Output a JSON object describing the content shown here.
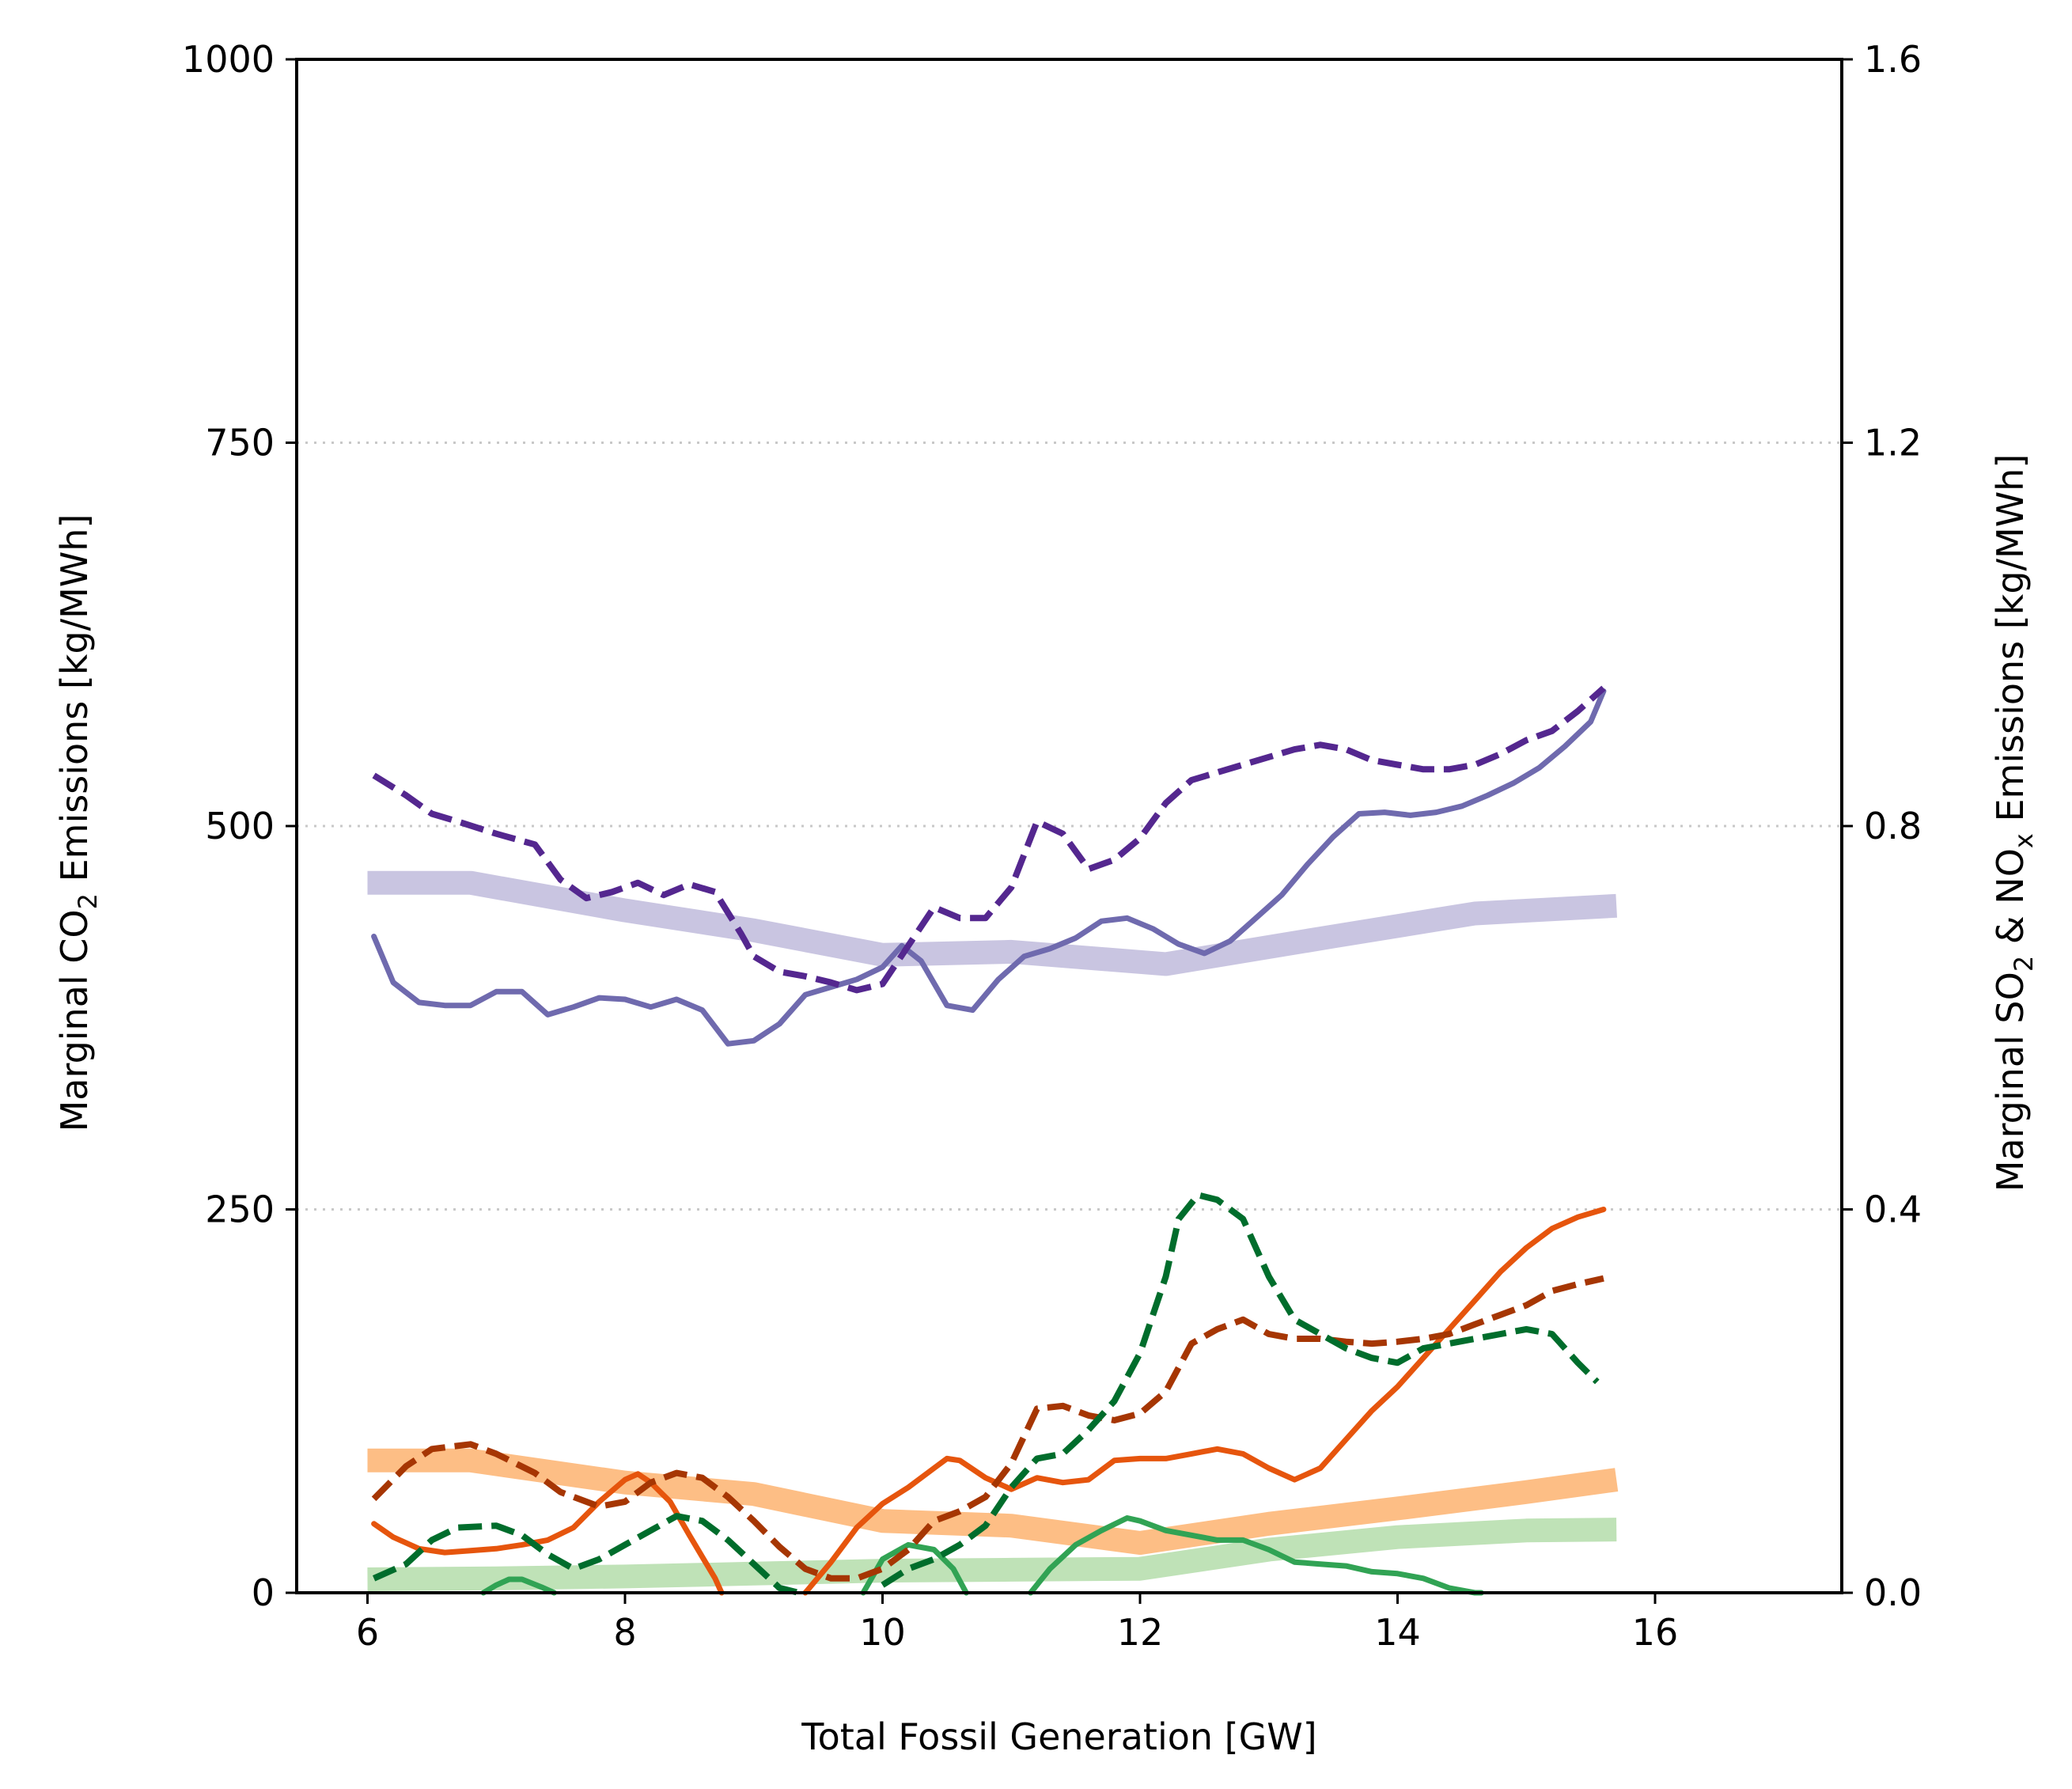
{
  "chart_data": {
    "type": "line",
    "title": "",
    "xlabel": "Total Fossil Generation [GW]",
    "ylabel_left": {
      "pre": "Marginal CO",
      "sub": "2",
      "post": " Emissions [kg/MWh]"
    },
    "ylabel_right": {
      "pre": "Marginal SO",
      "sub1": "2",
      "mid": " & NO",
      "sub2": "x",
      "post": " Emissions [kg/MWh]"
    },
    "xlim": [
      5.45,
      17.45
    ],
    "ylim_left": [
      0,
      1000
    ],
    "ylim_right": [
      0.0,
      1.6
    ],
    "x_ticks": [
      6,
      8,
      10,
      12,
      14,
      16
    ],
    "x_tick_labels": [
      "6",
      "8",
      "10",
      "12",
      "14",
      "16"
    ],
    "y_left_ticks": [
      0,
      250,
      500,
      750,
      1000
    ],
    "y_left_tick_labels": [
      "0",
      "250",
      "500",
      "750",
      "1000"
    ],
    "y_right_ticks": [
      0.0,
      0.4,
      0.8,
      1.2,
      1.6
    ],
    "y_right_tick_labels": [
      "0.0",
      "0.4",
      "0.8",
      "1.2",
      "1.6"
    ],
    "grid": "horizontal dotted at 250, 500, 750",
    "legend": "none",
    "series": [
      {
        "axis": "left",
        "style": "thick",
        "color": "#c9c5e1",
        "x": [
          6.0,
          6.8,
          8.0,
          9.0,
          10.0,
          11.0,
          12.2,
          13.5,
          14.6,
          15.7
        ],
        "y": [
          463,
          463,
          445,
          432,
          416,
          418,
          410,
          428,
          443,
          448
        ]
      },
      {
        "axis": "left",
        "style": "solid",
        "color": "#6f6aae",
        "x": [
          6.05,
          6.2,
          6.4,
          6.6,
          6.8,
          7.0,
          7.2,
          7.4,
          7.6,
          7.8,
          8.0,
          8.2,
          8.4,
          8.6,
          8.8,
          9.0,
          9.2,
          9.4,
          9.6,
          9.8,
          10.0,
          10.15,
          10.3,
          10.5,
          10.7,
          10.9,
          11.1,
          11.3,
          11.5,
          11.7,
          11.9,
          12.1,
          12.3,
          12.5,
          12.7,
          12.9,
          13.1,
          13.3,
          13.5,
          13.7,
          13.9,
          14.1,
          14.3,
          14.5,
          14.7,
          14.9,
          15.1,
          15.3,
          15.5,
          15.6
        ],
        "y": [
          428,
          398,
          385,
          383,
          383,
          392,
          392,
          377,
          382,
          388,
          387,
          382,
          387,
          380,
          358,
          360,
          371,
          390,
          395,
          400,
          408,
          422,
          412,
          383,
          380,
          400,
          415,
          420,
          427,
          438,
          440,
          433,
          423,
          417,
          425,
          440,
          455,
          475,
          493,
          508,
          509,
          507,
          509,
          513,
          520,
          528,
          538,
          552,
          568,
          588
        ]
      },
      {
        "axis": "left",
        "style": "dashed",
        "color": "#54278f",
        "x": [
          6.05,
          6.3,
          6.5,
          6.7,
          7.0,
          7.3,
          7.5,
          7.7,
          7.9,
          8.1,
          8.3,
          8.5,
          8.7,
          8.9,
          9.0,
          9.2,
          9.4,
          9.6,
          9.8,
          10.0,
          10.2,
          10.4,
          10.6,
          10.8,
          11.0,
          11.2,
          11.4,
          11.6,
          11.8,
          12.0,
          12.2,
          12.4,
          12.6,
          12.8,
          13.0,
          13.2,
          13.4,
          13.6,
          13.8,
          14.0,
          14.2,
          14.4,
          14.6,
          14.8,
          15.0,
          15.2,
          15.4,
          15.6
        ],
        "y": [
          533,
          520,
          508,
          503,
          495,
          488,
          465,
          453,
          457,
          463,
          455,
          462,
          457,
          430,
          415,
          405,
          402,
          398,
          393,
          397,
          422,
          447,
          440,
          440,
          460,
          503,
          495,
          472,
          478,
          492,
          515,
          530,
          535,
          540,
          545,
          550,
          553,
          550,
          543,
          540,
          537,
          537,
          540,
          547,
          556,
          562,
          575,
          590
        ]
      },
      {
        "axis": "right",
        "style": "thick",
        "color": "#fdbe85",
        "x": [
          6.0,
          6.8,
          8.0,
          9.0,
          10.0,
          11.0,
          12.0,
          13.0,
          14.0,
          15.0,
          15.7
        ],
        "y": [
          0.138,
          0.138,
          0.115,
          0.103,
          0.075,
          0.07,
          0.052,
          0.072,
          0.088,
          0.105,
          0.118
        ]
      },
      {
        "axis": "right",
        "style": "thick",
        "color": "#bfe2b7",
        "x": [
          6.0,
          7.0,
          8.0,
          9.0,
          10.0,
          11.0,
          12.0,
          13.0,
          14.0,
          15.0,
          15.7
        ],
        "y": [
          0.014,
          0.015,
          0.017,
          0.02,
          0.023,
          0.024,
          0.025,
          0.045,
          0.058,
          0.065,
          0.066
        ]
      },
      {
        "axis": "right",
        "style": "solid",
        "color": "#e6550d",
        "x": [
          6.05,
          6.2,
          6.4,
          6.6,
          6.8,
          7.0,
          7.2,
          7.4,
          7.6,
          7.8,
          8.0,
          8.1,
          8.2,
          8.35,
          8.5,
          8.7,
          8.75
        ],
        "y": [
          0.072,
          0.058,
          0.046,
          0.042,
          0.044,
          0.046,
          0.05,
          0.055,
          0.068,
          0.095,
          0.118,
          0.124,
          0.115,
          0.095,
          0.06,
          0.015,
          0.0
        ]
      },
      {
        "axis": "right",
        "style": "solid",
        "color": "#e6550d",
        "x": [
          9.4,
          9.6,
          9.8,
          10.0,
          10.2,
          10.4,
          10.5,
          10.6,
          10.8,
          11.0,
          11.2,
          11.4,
          11.6,
          11.8,
          12.0,
          12.2,
          12.4,
          12.6,
          12.8,
          13.0,
          13.2,
          13.4,
          13.6,
          13.8,
          14.0,
          14.2,
          14.4,
          14.6,
          14.8,
          15.0,
          15.2,
          15.4,
          15.6
        ],
        "y": [
          0.0,
          0.032,
          0.068,
          0.093,
          0.11,
          0.13,
          0.14,
          0.138,
          0.12,
          0.108,
          0.12,
          0.115,
          0.118,
          0.138,
          0.14,
          0.14,
          0.145,
          0.15,
          0.145,
          0.13,
          0.118,
          0.13,
          0.16,
          0.19,
          0.215,
          0.245,
          0.275,
          0.305,
          0.335,
          0.36,
          0.38,
          0.392,
          0.4
        ]
      },
      {
        "axis": "right",
        "style": "dashed",
        "color": "#a63603",
        "x": [
          6.05,
          6.3,
          6.5,
          6.8,
          7.0,
          7.3,
          7.5,
          7.8,
          8.0,
          8.2,
          8.4,
          8.6,
          8.8,
          9.0,
          9.2,
          9.4,
          9.6,
          9.8,
          10.0,
          10.2,
          10.4,
          10.6,
          10.8,
          11.0,
          11.2,
          11.4,
          11.6,
          11.8,
          12.0,
          12.2,
          12.4,
          12.6,
          12.8,
          13.0,
          13.2,
          13.4,
          13.6,
          13.8,
          14.0,
          14.2,
          14.4,
          14.6,
          14.8,
          15.0,
          15.2,
          15.4,
          15.6
        ],
        "y": [
          0.098,
          0.132,
          0.15,
          0.155,
          0.145,
          0.125,
          0.105,
          0.09,
          0.095,
          0.115,
          0.125,
          0.12,
          0.1,
          0.075,
          0.048,
          0.025,
          0.015,
          0.015,
          0.025,
          0.045,
          0.075,
          0.085,
          0.1,
          0.135,
          0.192,
          0.195,
          0.185,
          0.18,
          0.187,
          0.21,
          0.26,
          0.275,
          0.285,
          0.27,
          0.265,
          0.265,
          0.262,
          0.26,
          0.262,
          0.265,
          0.27,
          0.28,
          0.29,
          0.3,
          0.315,
          0.322,
          0.328
        ]
      },
      {
        "axis": "right",
        "style": "solid",
        "color": "#31a354",
        "x": [
          6.9,
          7.0,
          7.1,
          7.2,
          7.35,
          7.45
        ],
        "y": [
          0.0,
          0.008,
          0.014,
          0.014,
          0.006,
          0.0
        ]
      },
      {
        "axis": "right",
        "style": "solid",
        "color": "#31a354",
        "x": [
          9.85,
          10.0,
          10.2,
          10.4,
          10.55,
          10.65
        ],
        "y": [
          0.0,
          0.035,
          0.05,
          0.045,
          0.025,
          0.0
        ]
      },
      {
        "axis": "right",
        "style": "solid",
        "color": "#31a354",
        "x": [
          11.15,
          11.3,
          11.5,
          11.7,
          11.9,
          12.0,
          12.2,
          12.4,
          12.6,
          12.8,
          13.0,
          13.2,
          13.4,
          13.6,
          13.8,
          14.0,
          14.2,
          14.4,
          14.6,
          14.65
        ],
        "y": [
          0.0,
          0.025,
          0.05,
          0.065,
          0.078,
          0.075,
          0.065,
          0.06,
          0.055,
          0.055,
          0.045,
          0.032,
          0.03,
          0.028,
          0.022,
          0.02,
          0.015,
          0.005,
          0.0,
          0.0
        ]
      },
      {
        "axis": "right",
        "style": "dashed",
        "color": "#006d2c",
        "x": [
          6.05,
          6.3,
          6.5,
          6.7,
          7.0,
          7.2,
          7.4,
          7.6,
          7.8,
          8.0,
          8.2,
          8.4,
          8.6,
          8.8,
          9.0,
          9.2,
          9.35,
          9.4
        ],
        "y": [
          0.015,
          0.03,
          0.055,
          0.068,
          0.07,
          0.06,
          0.04,
          0.025,
          0.035,
          0.05,
          0.065,
          0.08,
          0.075,
          0.055,
          0.03,
          0.005,
          0.0,
          0.0
        ]
      },
      {
        "axis": "right",
        "style": "dashed",
        "color": "#006d2c",
        "x": [
          10.0,
          10.2,
          10.4,
          10.6,
          10.8,
          11.0,
          11.2,
          11.4,
          11.6,
          11.8,
          12.0,
          12.2,
          12.3,
          12.45,
          12.6,
          12.8,
          13.0,
          13.2,
          13.4,
          13.6,
          13.8,
          14.0,
          14.2,
          14.4,
          14.6,
          14.8,
          15.0,
          15.2,
          15.4,
          15.55
        ],
        "y": [
          0.008,
          0.025,
          0.035,
          0.05,
          0.07,
          0.11,
          0.14,
          0.145,
          0.17,
          0.2,
          0.25,
          0.33,
          0.39,
          0.415,
          0.41,
          0.39,
          0.33,
          0.285,
          0.27,
          0.255,
          0.245,
          0.24,
          0.255,
          0.26,
          0.265,
          0.27,
          0.275,
          0.27,
          0.24,
          0.22
        ]
      }
    ]
  }
}
